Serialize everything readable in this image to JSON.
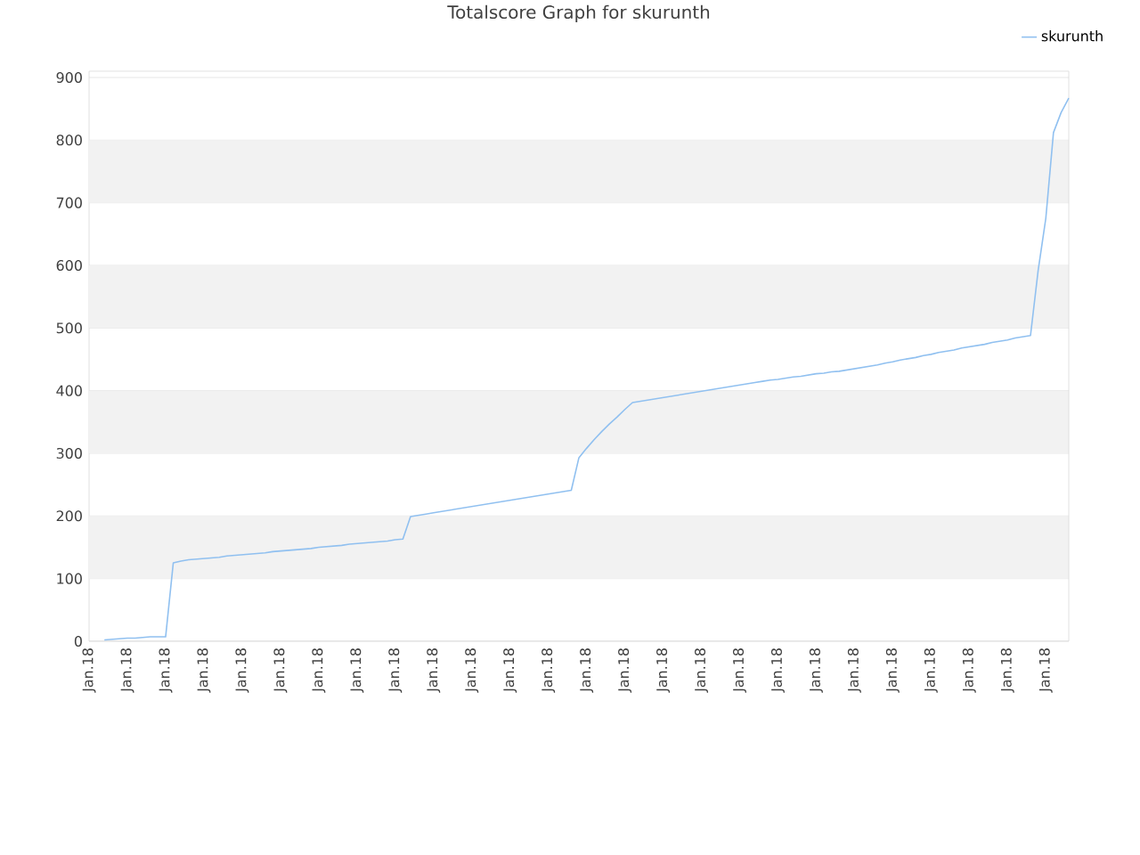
{
  "chart_data": {
    "type": "line",
    "title": "Totalscore Graph for skurunth",
    "categories": [
      "Jan.18",
      null,
      null,
      null,
      null,
      "Jan.18",
      null,
      null,
      null,
      null,
      "Jan.18",
      null,
      null,
      null,
      null,
      "Jan.18",
      null,
      null,
      null,
      null,
      "Jan.18",
      null,
      null,
      null,
      null,
      "Jan.18",
      null,
      null,
      null,
      null,
      "Jan.18",
      null,
      null,
      null,
      null,
      "Jan.18",
      null,
      null,
      null,
      null,
      "Jan.18",
      null,
      null,
      null,
      null,
      "Jan.18",
      null,
      null,
      null,
      null,
      "Jan.18",
      null,
      null,
      null,
      null,
      "Jan.18",
      null,
      null,
      null,
      null,
      "Jan.18",
      null,
      null,
      null,
      null,
      "Jan.18",
      null,
      null,
      null,
      null,
      "Jan.18",
      null,
      null,
      null,
      null,
      "Jan.18",
      null,
      null,
      null,
      null,
      "Jan.18",
      null,
      null,
      null,
      null,
      "Jan.18",
      null,
      null,
      null,
      null,
      "Jan.18",
      null,
      null,
      null,
      null,
      "Jan.18",
      null,
      null,
      null,
      null,
      "Jan.18",
      null,
      null,
      null,
      null,
      "Jan.18",
      null,
      null,
      null,
      null,
      "Jan.18",
      null,
      null,
      null,
      null,
      "Jan.18",
      null,
      null,
      null,
      null,
      "Jan.18",
      null,
      null,
      null,
      null,
      "Jan.18",
      null,
      null,
      null
    ],
    "series": [
      {
        "name": "skurunth",
        "color": "#90c0f0",
        "values": [
          null,
          null,
          2,
          3,
          4,
          5,
          5,
          6,
          7,
          7,
          7,
          125,
          128,
          130,
          131,
          132,
          133,
          134,
          136,
          137,
          138,
          139,
          140,
          141,
          143,
          144,
          145,
          146,
          147,
          148,
          150,
          151,
          152,
          153,
          155,
          156,
          157,
          158,
          159,
          160,
          162,
          163,
          199,
          201,
          203,
          205,
          207,
          209,
          211,
          213,
          215,
          217,
          219,
          221,
          223,
          225,
          227,
          229,
          231,
          233,
          235,
          237,
          239,
          241,
          293,
          308,
          322,
          335,
          347,
          358,
          370,
          381,
          383,
          385,
          387,
          389,
          391,
          393,
          395,
          397,
          399,
          401,
          403,
          405,
          407,
          409,
          411,
          413,
          415,
          417,
          418,
          420,
          422,
          423,
          425,
          427,
          428,
          430,
          431,
          433,
          435,
          437,
          439,
          441,
          444,
          446,
          449,
          451,
          453,
          456,
          458,
          461,
          463,
          465,
          468,
          470,
          472,
          474,
          477,
          479,
          481,
          484,
          486,
          488,
          592,
          675,
          812,
          844,
          867
        ]
      }
    ],
    "ylim": [
      0,
      910
    ],
    "yticks": [
      0,
      100,
      200,
      300,
      400,
      500,
      600,
      700,
      800,
      900
    ],
    "bands": [
      {
        "axis": "y",
        "from": 100,
        "to": 200,
        "color": "#f2f2f2"
      },
      {
        "axis": "y",
        "from": 300,
        "to": 400,
        "color": "#f2f2f2"
      },
      {
        "axis": "y",
        "from": 500,
        "to": 600,
        "color": "#f2f2f2"
      },
      {
        "axis": "y",
        "from": 700,
        "to": 800,
        "color": "#f2f2f2"
      }
    ],
    "grid": "y",
    "legend": "top right"
  }
}
